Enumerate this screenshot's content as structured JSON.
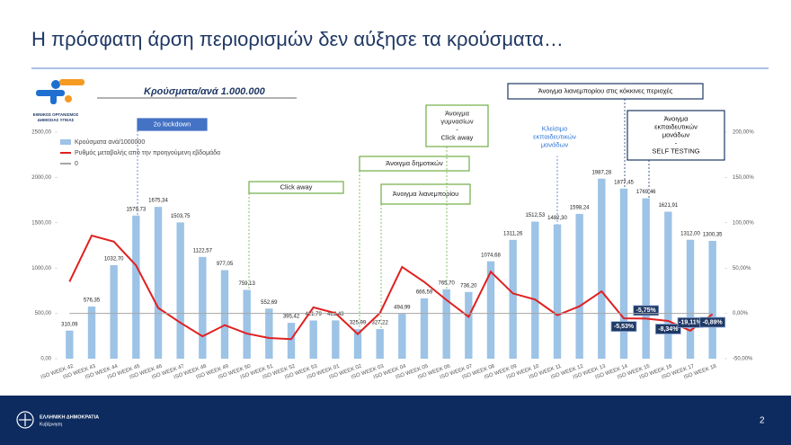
{
  "slide": {
    "title": "Η πρόσφατη άρση περιορισμών δεν αύξησε τα κρούσματα…",
    "logo_lines": [
      "ΕΘΝΙΚΟΣ ΟΡΓΑΝΙΣΜΟΣ",
      "ΔΗΜΟΣΙΑΣ ΥΓΕΙΑΣ"
    ],
    "footer_lines": [
      "ΕΛΛΗΝΙΚΗ ΔΗΜΟΚΡΑΤΙΑ",
      "Κυβέρνηση"
    ],
    "page_number": "2"
  },
  "chart_data": {
    "type": "bar",
    "title": "Κρούσματα/ανά 1.000.000",
    "categories": [
      "ISO WEEK 42",
      "ISO WEEK 43",
      "ISO WEEK 44",
      "ISO WEEK 45",
      "ISO WEEK 46",
      "ISO WEEK 47",
      "ISO WEEK 48",
      "ISO WEEK 49",
      "ISO WEEK 50",
      "ISO WEEK 51",
      "ISO WEEK 52",
      "ISO WEEK 53",
      "ISO WEEK 01",
      "ISO WEEK 02",
      "ISO WEEK 03",
      "ISO WEEK 04",
      "ISO WEEK 05",
      "ISO WEEK 06",
      "ISO WEEK 07",
      "ISO WEEK 08",
      "ISO WEEK 09",
      "ISO WEEK 10",
      "ISO WEEK 11",
      "ISO WEEK 12",
      "ISO WEEK 13",
      "ISO WEEK 14",
      "ISO WEEK 15",
      "ISO WEEK 16",
      "ISO WEEK 17",
      "ISO WEEK 18"
    ],
    "series": [
      {
        "name": "Κρούσματα ανά/1000000",
        "color": "#9dc3e6",
        "values": [
          310.09,
          576.35,
          1032.7,
          1579.73,
          1675.34,
          1503.75,
          1122.57,
          977.05,
          759.13,
          552.69,
          395.42,
          421.79,
          422.43,
          325.99,
          327.22,
          494.99,
          666.59,
          765.7,
          736.2,
          1074.68,
          1311.26,
          1512.53,
          1482.3,
          1598.24,
          1987.28,
          1877.45,
          1769.46,
          1621.91,
          1312.0,
          1300.35
        ],
        "value_labels": [
          "310,09",
          "576,35",
          "1032,70",
          "1579,73",
          "1675,34",
          "1503,75",
          "1122,57",
          "977,05",
          "759,13",
          "552,69",
          "395,42",
          "421,79",
          "422,43",
          "325,99",
          "327,22",
          "494,99",
          "666,59",
          "765,70",
          "736,20",
          "1074,68",
          "1311,26",
          "1512,53",
          "1482,30",
          "1598,24",
          "1987,28",
          "1877,45",
          "1769,46",
          "1621,91",
          "1312,00",
          "1300,35"
        ]
      },
      {
        "name": "Ρυθμός μεταβολής από την προηγούμενη εβδομάδα",
        "color": "#e02020",
        "axis": "y2",
        "values": [
          35,
          85.87,
          79.18,
          52.97,
          6.05,
          -10.24,
          -25.35,
          -12.96,
          -22.3,
          -27.19,
          -28.45,
          6.67,
          0.15,
          -22.83,
          0.38,
          51.27,
          34.67,
          14.87,
          -3.85,
          45.98,
          22.01,
          15.35,
          -2.0,
          7.82,
          24.34,
          -5.53,
          -5.75,
          -8.34,
          -19.11,
          -0.89
        ],
        "value_labels": [
          null,
          null,
          null,
          null,
          null,
          null,
          null,
          null,
          null,
          null,
          null,
          null,
          null,
          null,
          null,
          null,
          null,
          null,
          null,
          null,
          null,
          null,
          null,
          null,
          null,
          "-5,53%",
          "-5,75%",
          "-8,34%",
          "-19,11%",
          "-0,89%"
        ]
      },
      {
        "name": "0",
        "color": "#a6a6a6",
        "axis": "y2",
        "values": [
          0,
          0,
          0,
          0,
          0,
          0,
          0,
          0,
          0,
          0,
          0,
          0,
          0,
          0,
          0,
          0,
          0,
          0,
          0,
          0,
          0,
          0,
          0,
          0,
          0,
          0,
          0,
          0,
          0,
          0
        ]
      }
    ],
    "ylim": [
      0,
      2500
    ],
    "yticks": [
      {
        "value": 0,
        "label": "0,00"
      },
      {
        "value": 500,
        "label": "500,00"
      },
      {
        "value": 1000,
        "label": "1000,00"
      },
      {
        "value": 1500,
        "label": "1500,00"
      },
      {
        "value": 2000,
        "label": "2000,00"
      },
      {
        "value": 2500,
        "label": "2500,00"
      }
    ],
    "y2lim": [
      -50,
      200
    ],
    "y2ticks": [
      {
        "value": -50,
        "label": "-50,00%"
      },
      {
        "value": 0,
        "label": "0,00%"
      },
      {
        "value": 50,
        "label": "50,00%"
      },
      {
        "value": 100,
        "label": "100,00%"
      },
      {
        "value": 150,
        "label": "150,00%"
      },
      {
        "value": 200,
        "label": "200,00%"
      }
    ],
    "legend": "upper left",
    "annotations": [
      {
        "lines": [
          "2ο lockdown"
        ]
      },
      {
        "lines": [
          "Click away"
        ]
      },
      {
        "lines": [
          "Άνοιγμα δημοτικών"
        ]
      },
      {
        "lines": [
          "Άνοιγμα λιανεμπορίου"
        ]
      },
      {
        "lines": [
          "Άνοιγμα",
          "γυμνασίων",
          "-",
          "Click away"
        ]
      },
      {
        "lines": [
          "Κλείσιμο",
          "εκπαιδευτικών",
          "μονάδων"
        ]
      },
      {
        "lines": [
          "Άνοιγμα λιανεμπορίου στις κόκκινες περιοχές"
        ]
      },
      {
        "lines": [
          "Άνοιγμα",
          "εκπαιδευτικών",
          "μονάδων",
          "-",
          "SELF TESTING"
        ]
      }
    ]
  }
}
